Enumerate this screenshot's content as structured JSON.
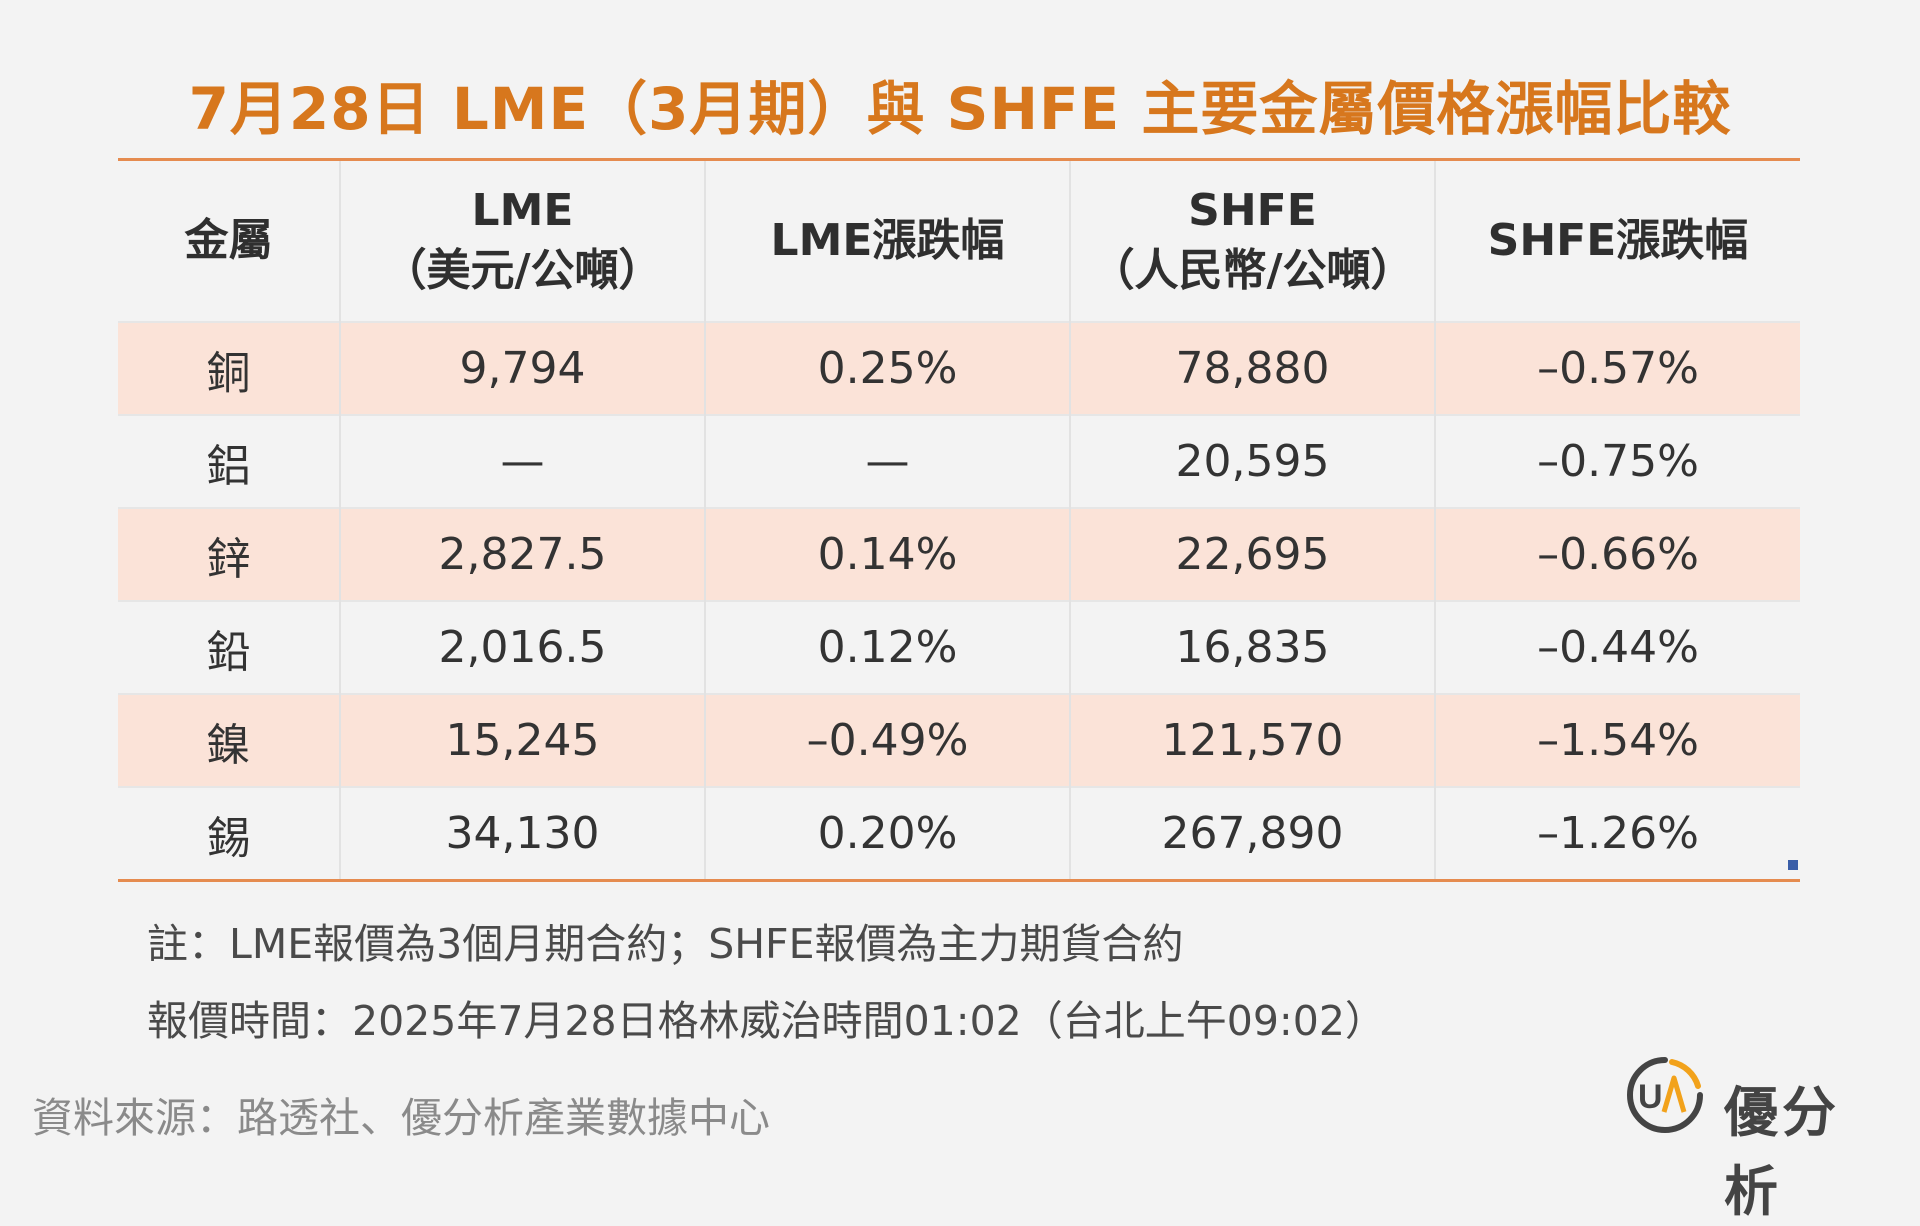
{
  "title": "7月28日 LME（3月期）與 SHFE 主要金屬價格漲幅比較",
  "table": {
    "headers": [
      {
        "line1": "金屬",
        "line2": ""
      },
      {
        "line1": "LME",
        "line2": "（美元/公噸）"
      },
      {
        "line1": "LME漲跌幅",
        "line2": ""
      },
      {
        "line1": "SHFE",
        "line2": "（人民幣/公噸）"
      },
      {
        "line1": "SHFE漲跌幅",
        "line2": ""
      }
    ],
    "rows": [
      {
        "metal": "銅",
        "lme": "9,794",
        "lme_chg": "0.25%",
        "shfe": "78,880",
        "shfe_chg": "–0.57%"
      },
      {
        "metal": "鋁",
        "lme": "—",
        "lme_chg": "—",
        "shfe": "20,595",
        "shfe_chg": "–0.75%"
      },
      {
        "metal": "鋅",
        "lme": "2,827.5",
        "lme_chg": "0.14%",
        "shfe": "22,695",
        "shfe_chg": "–0.66%"
      },
      {
        "metal": "鉛",
        "lme": "2,016.5",
        "lme_chg": "0.12%",
        "shfe": "16,835",
        "shfe_chg": "–0.44%"
      },
      {
        "metal": "鎳",
        "lme": "15,245",
        "lme_chg": "–0.49%",
        "shfe": "121,570",
        "shfe_chg": "–1.54%"
      },
      {
        "metal": "錫",
        "lme": "34,130",
        "lme_chg": "0.20%",
        "shfe": "267,890",
        "shfe_chg": "–1.26%"
      }
    ]
  },
  "notes": {
    "note1": "註：LME報價為3個月期合約；SHFE報價為主力期貨合約",
    "note2": "報價時間：2025年7月28日格林威治時間01:02（台北上午09:02）"
  },
  "source": "資料來源：路透社、優分析產業數據中心",
  "logo": {
    "text": "優分析",
    "mark_icon": "ua-logo-icon",
    "mark_letters": "UA"
  },
  "colors": {
    "title": "#d7771d",
    "row_shade": "#fbe3d8",
    "rule": "#e58b4f",
    "logo_accent": "#f2a21b"
  }
}
